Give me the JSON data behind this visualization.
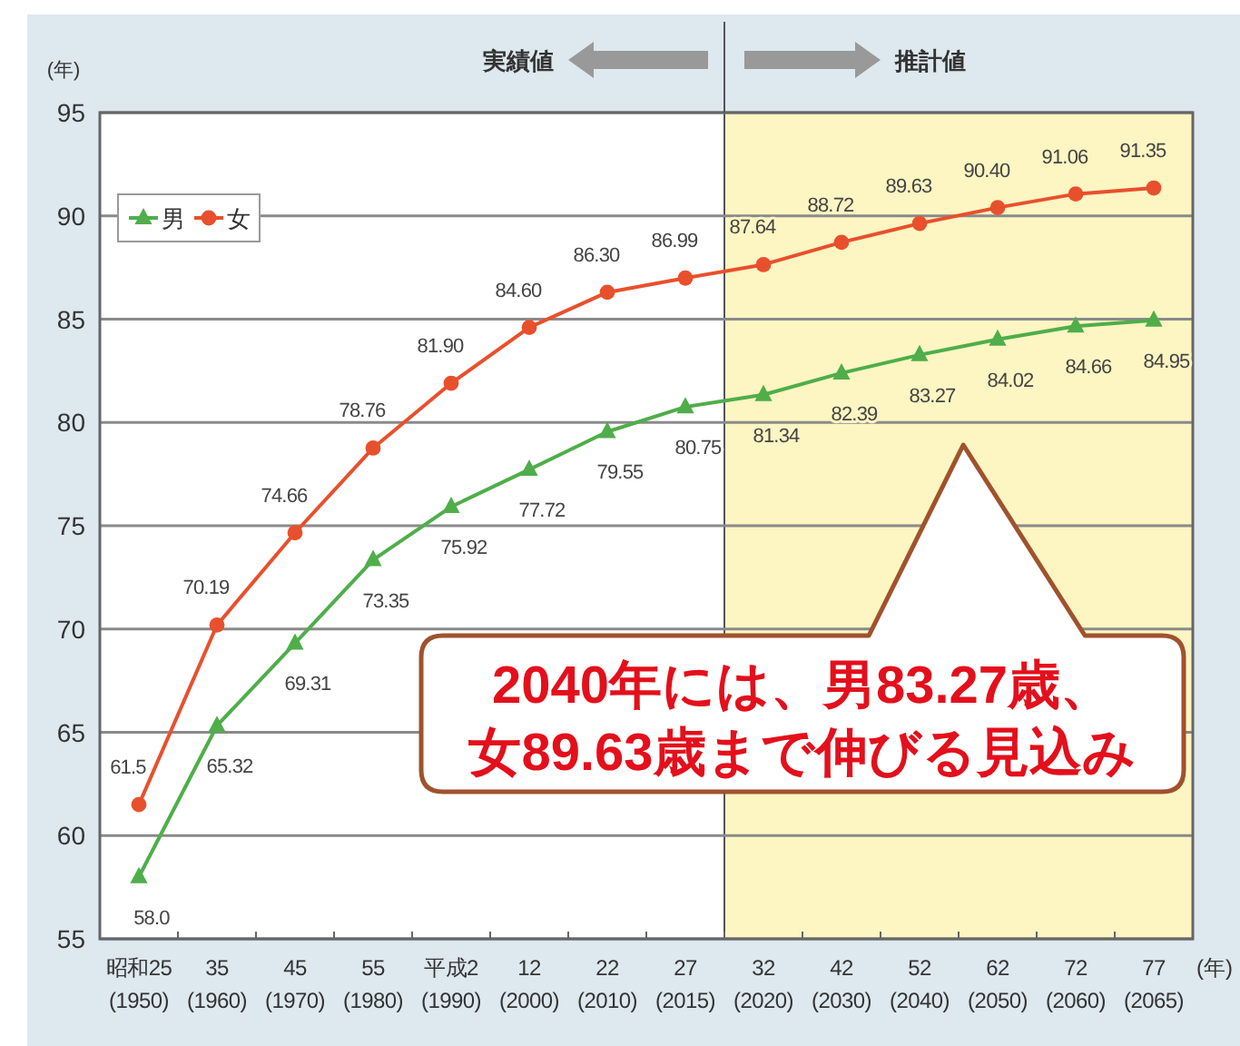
{
  "chart_data": {
    "type": "line",
    "xlabel": "(年)",
    "ylabel": "(年)",
    "categories": [
      "昭和25\n(1950)",
      "35\n(1960)",
      "45\n(1970)",
      "55\n(1980)",
      "平成2\n(1990)",
      "12\n(2000)",
      "22\n(2010)",
      "27\n(2015)",
      "32\n(2020)",
      "42\n(2030)",
      "52\n(2040)",
      "62\n(2050)",
      "72\n(2060)",
      "77\n(2065)"
    ],
    "series": [
      {
        "name": "男",
        "color": "#4fae4a",
        "marker": "triangle",
        "values": [
          58.0,
          65.32,
          69.31,
          73.35,
          75.92,
          77.72,
          79.55,
          80.75,
          81.34,
          82.39,
          83.27,
          84.02,
          84.66,
          84.95
        ],
        "value_labels": [
          "58.0",
          "65.32",
          "69.31",
          "73.35",
          "75.92",
          "77.72",
          "79.55",
          "80.75",
          "81.34",
          "82.39",
          "83.27",
          "84.02",
          "84.66",
          "84.95"
        ]
      },
      {
        "name": "女",
        "color": "#e8502d",
        "marker": "circle",
        "values": [
          61.5,
          70.19,
          74.66,
          78.76,
          81.9,
          84.6,
          86.3,
          86.99,
          87.64,
          88.72,
          89.63,
          90.4,
          91.06,
          91.35
        ],
        "value_labels": [
          "61.5",
          "70.19",
          "74.66",
          "78.76",
          "81.90",
          "84.60",
          "86.30",
          "86.99",
          "87.64",
          "88.72",
          "89.63",
          "90.40",
          "91.06",
          "91.35"
        ]
      }
    ],
    "ylim": [
      55,
      95
    ],
    "yticks": [
      55,
      60,
      65,
      70,
      75,
      80,
      85,
      90,
      95
    ],
    "grid": "y",
    "legend": "top left",
    "bands": [
      {
        "axis": "x",
        "from": "32\n(2020)",
        "to": "77\n(2065)",
        "label": "推計値",
        "color": "#fdf5c2"
      }
    ],
    "annotations": [
      "実績値",
      "2040年には、男83.27歳、女89.63歳まで伸びる見込み"
    ]
  }
}
